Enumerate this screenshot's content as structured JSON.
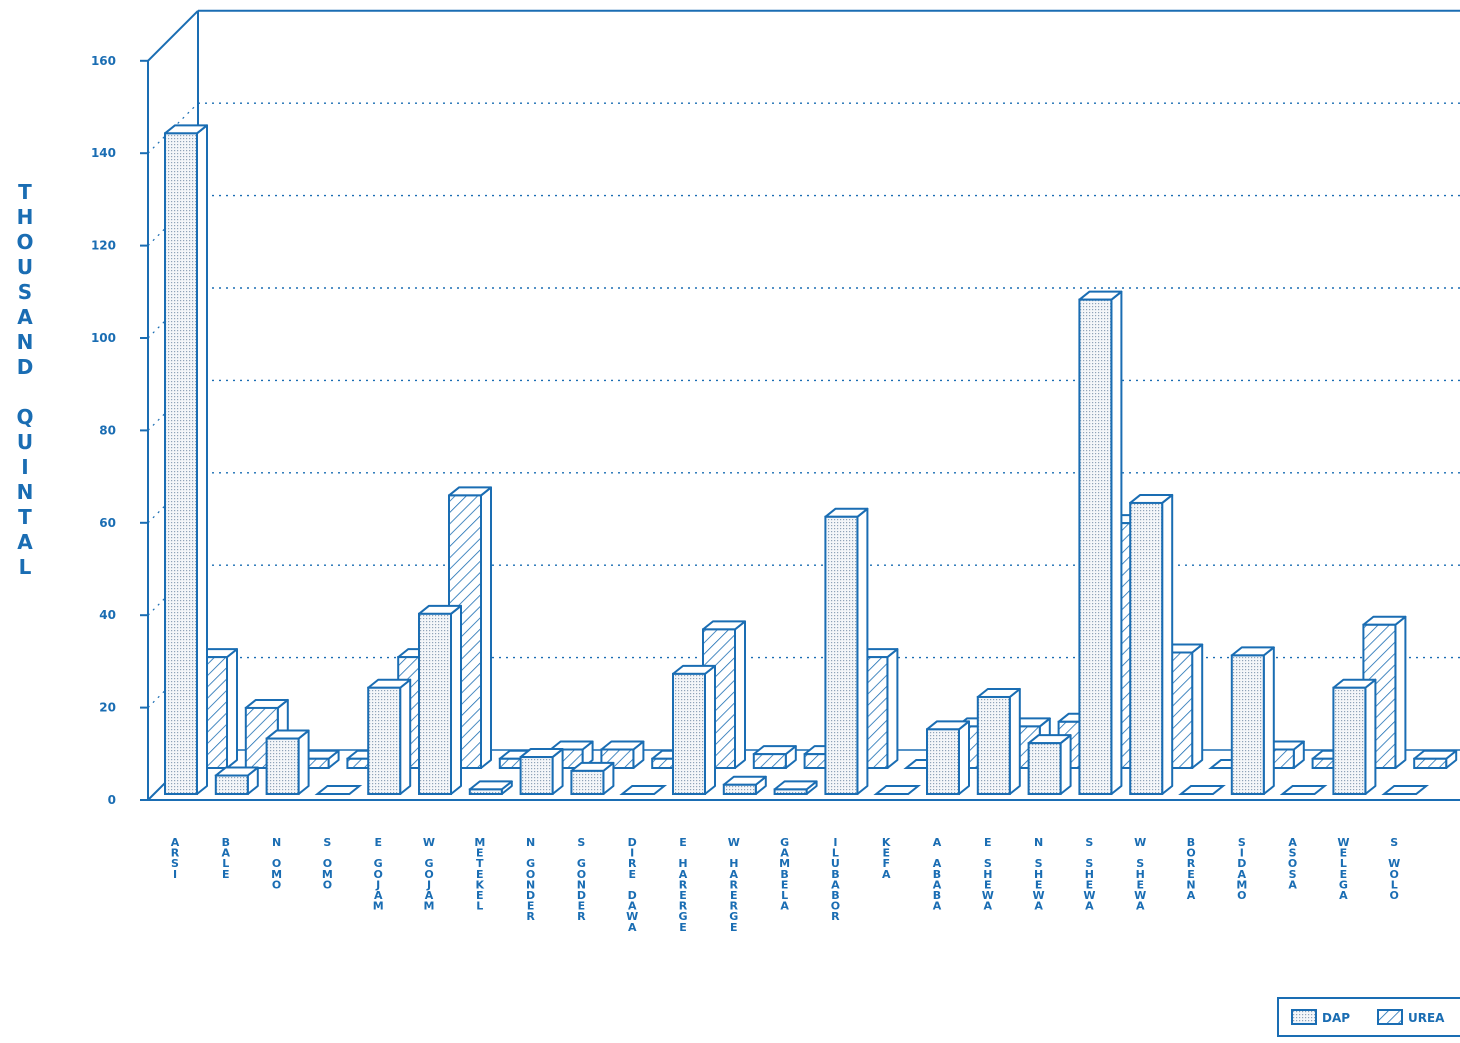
{
  "chart_data": {
    "type": "bar",
    "title": "",
    "ylabel": "THOUSAND QUINTAL",
    "ylim": [
      0,
      160
    ],
    "yticks": [
      "0",
      "20",
      "40",
      "60",
      "80",
      "100",
      "120",
      "140",
      "160"
    ],
    "grid": true,
    "legend_position": "bottom-right",
    "categories": [
      "ARSI",
      "BALE",
      "N OMO",
      "S OMO",
      "E GOJAM",
      "W GOJAM",
      "METEKEL",
      "N GONDER",
      "S GONDER",
      "DIRE DAWA",
      "E HARERGE",
      "W HARERGE",
      "GAMBELA",
      "ILUBABOR",
      "KEFA",
      "A ABABA",
      "E SHEWA",
      "N SHEWA",
      "S SHEWA",
      "W SHEWA",
      "BORENA",
      "SIDAMO",
      "ASOSA",
      "WELEGA",
      "S WOLO"
    ],
    "category_label_lines": [
      [
        "ARSI"
      ],
      [
        "BALE"
      ],
      [
        "N",
        "OMO"
      ],
      [
        "S",
        "OMO"
      ],
      [
        "E",
        "GOJAM"
      ],
      [
        "W",
        "GOJAM"
      ],
      [
        "METEKEL"
      ],
      [
        "N",
        "GONDER"
      ],
      [
        "S",
        "GONDER"
      ],
      [
        "DIRE",
        "DAWA"
      ],
      [
        "E",
        "HARERGE"
      ],
      [
        "W",
        "HARERGE"
      ],
      [
        "GAMBELA"
      ],
      [
        "ILUBABOR"
      ],
      [
        "KEFA"
      ],
      [
        "A",
        "ABABA"
      ],
      [
        "E",
        "SHEWA"
      ],
      [
        "N",
        "SHEWA"
      ],
      [
        "S",
        "SHEWA"
      ],
      [
        "W",
        "SHEWA"
      ],
      [
        "BORENA"
      ],
      [
        "SIDAMO"
      ],
      [
        "ASOSA"
      ],
      [
        "WELEGA"
      ],
      [
        "S",
        "WOLO"
      ]
    ],
    "series": [
      {
        "name": "DAP",
        "values": [
          143,
          4,
          12,
          0,
          23,
          39,
          1,
          8,
          5,
          0,
          26,
          2,
          1,
          60,
          0,
          14,
          21,
          11,
          107,
          63,
          0,
          30,
          0,
          23,
          0
        ]
      },
      {
        "name": "UREA",
        "values": [
          24,
          13,
          2,
          2,
          24,
          59,
          2,
          4,
          4,
          2,
          30,
          3,
          3,
          24,
          0,
          9,
          9,
          10,
          53,
          25,
          0,
          4,
          2,
          31,
          2
        ]
      }
    ],
    "colors": {
      "ink": "#1a6db3",
      "dap_fill": "#d8dee6",
      "urea_fill": "#f2f5f8",
      "background": "#ffffff"
    }
  }
}
